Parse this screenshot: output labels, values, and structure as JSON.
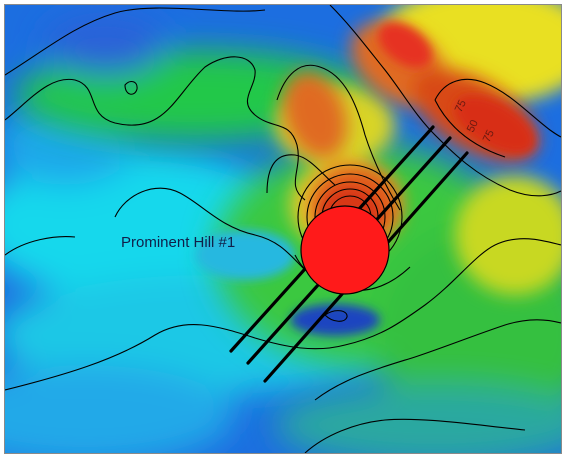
{
  "map": {
    "feature_label": "Prominent Hill #1",
    "contour_labels": [
      "75",
      "50",
      "75"
    ],
    "anomaly_marker_color": "#ff1a1a",
    "drill_line_count": 3
  }
}
